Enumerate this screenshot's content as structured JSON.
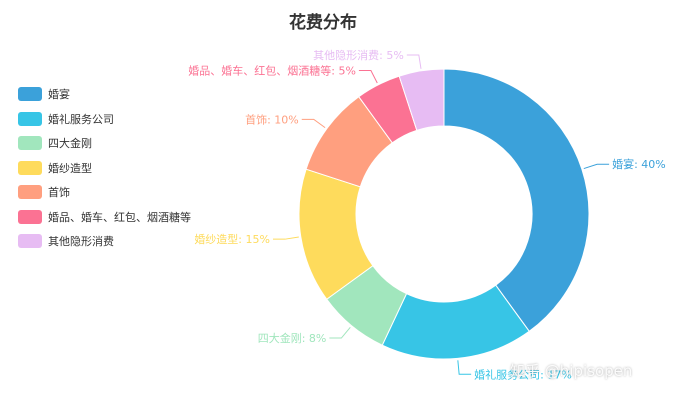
{
  "chart_data": {
    "type": "pie",
    "title": "花费分布",
    "categories": [
      "婚宴",
      "婚礼服务公司",
      "四大金刚",
      "婚纱造型",
      "首饰",
      "婚品、婚车、红包、烟酒糖等",
      "其他隐形消费"
    ],
    "values": [
      40,
      17,
      8,
      15,
      10,
      5,
      5
    ],
    "colors": [
      "#3ba1da",
      "#37c5e6",
      "#a1e6bd",
      "#fedb5c",
      "#ff9f7f",
      "#fb7293",
      "#e7bcf3"
    ],
    "labels": [
      "婚宴: 40%",
      "婚礼服务公司: 17%",
      "四大金刚: 8%",
      "婚纱造型: 15%",
      "首饰: 10%",
      "婚品、婚车、红包、烟酒糖等: 5%",
      "其他隐形消费: 5%"
    ],
    "legend_position": "left"
  },
  "watermark": "知乎 @hipisopen"
}
